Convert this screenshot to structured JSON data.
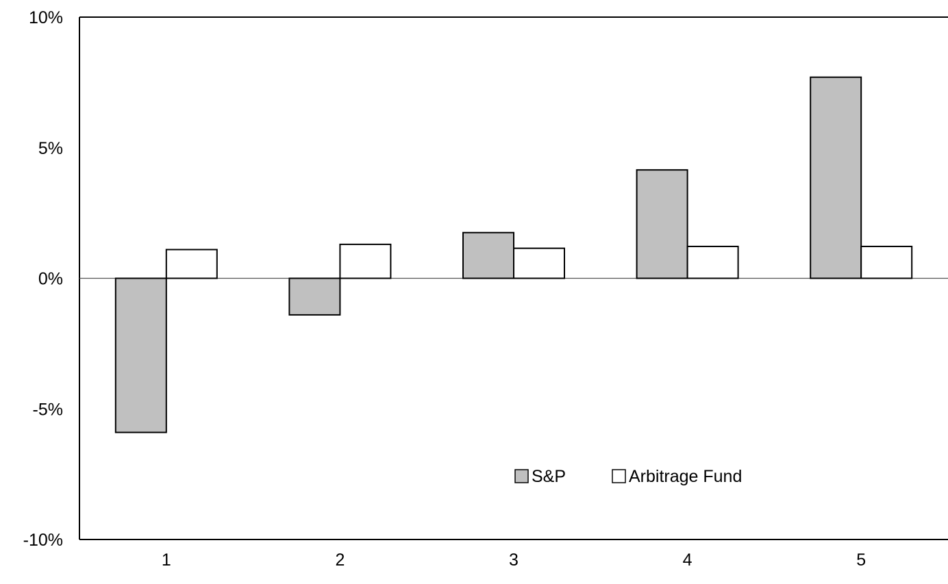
{
  "chart_data": {
    "type": "bar",
    "title": "",
    "xlabel": "",
    "ylabel": "",
    "categories": [
      "1",
      "2",
      "3",
      "4",
      "5"
    ],
    "series": [
      {
        "name": "S&P",
        "color": "#c0c0c0",
        "values": [
          -5.9,
          -1.4,
          1.75,
          4.15,
          7.7
        ]
      },
      {
        "name": "Arbitrage Fund",
        "color": "#ffffff",
        "values": [
          1.1,
          1.3,
          1.15,
          1.22,
          1.22
        ]
      }
    ],
    "ylim": [
      -10,
      10
    ],
    "yticks": [
      {
        "value": 10,
        "label": "10%"
      },
      {
        "value": 5,
        "label": "5%"
      },
      {
        "value": 0,
        "label": "0%"
      },
      {
        "value": -5,
        "label": "-5%"
      },
      {
        "value": -10,
        "label": "-10%"
      }
    ],
    "grid": false,
    "legend_position": "bottom-center"
  }
}
